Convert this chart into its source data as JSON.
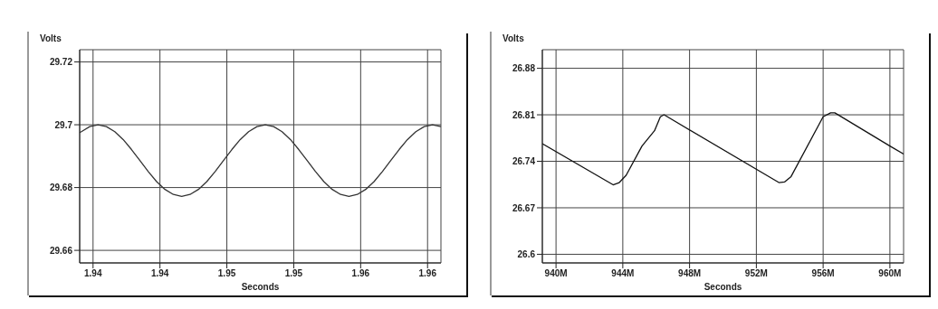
{
  "chart_data": [
    {
      "type": "line",
      "xlabel": "Seconds",
      "ylabel": "Volts",
      "grid": true,
      "legend": false,
      "marker": "none",
      "line_style": "solid",
      "xlim": [
        1.9402,
        1.9618
      ],
      "ylim": [
        29.656,
        29.7239
      ],
      "xticks": [
        {
          "value": 1.941,
          "label": "1.94"
        },
        {
          "value": 1.945,
          "label": "1.94"
        },
        {
          "value": 1.949,
          "label": "1.95"
        },
        {
          "value": 1.953,
          "label": "1.95"
        },
        {
          "value": 1.957,
          "label": "1.96"
        },
        {
          "value": 1.961,
          "label": "1.96"
        }
      ],
      "yticks": [
        29.66,
        29.68,
        29.7,
        29.72
      ],
      "series": [
        {
          "color": "#333333",
          "x": [
            1.9402,
            1.9403,
            1.9408,
            1.9413,
            1.9418,
            1.9423,
            1.9428,
            1.9433,
            1.9438,
            1.9443,
            1.9448,
            1.9453,
            1.9458,
            1.9463,
            1.9468,
            1.9473,
            1.9478,
            1.9483,
            1.9488,
            1.9493,
            1.9498,
            1.9503,
            1.9508,
            1.9513,
            1.9518,
            1.9523,
            1.9528,
            1.9533,
            1.9538,
            1.9543,
            1.9548,
            1.9553,
            1.9558,
            1.9563,
            1.9568,
            1.9573,
            1.9578,
            1.9583,
            1.9588,
            1.9593,
            1.9598,
            1.9603,
            1.9608,
            1.9613,
            1.9618
          ],
          "values": [
            29.6975,
            29.6978,
            29.6994,
            29.7,
            29.6994,
            29.6978,
            29.6953,
            29.6921,
            29.6886,
            29.6851,
            29.6819,
            29.6794,
            29.6778,
            29.6772,
            29.6778,
            29.6794,
            29.6819,
            29.6851,
            29.6886,
            29.6921,
            29.6953,
            29.6978,
            29.6994,
            29.7,
            29.6994,
            29.6978,
            29.6953,
            29.6921,
            29.6886,
            29.6851,
            29.6819,
            29.6794,
            29.6778,
            29.6772,
            29.6778,
            29.6794,
            29.6819,
            29.6851,
            29.6886,
            29.6921,
            29.6953,
            29.6978,
            29.6994,
            29.7,
            29.6994
          ]
        }
      ]
    },
    {
      "type": "line",
      "xlabel": "Seconds",
      "ylabel": "Volts",
      "grid": true,
      "legend": false,
      "marker": "none",
      "line_style": "solid",
      "xlim": [
        939.18,
        960.82
      ],
      "ylim": [
        26.587,
        26.908
      ],
      "xticks": [
        {
          "value": 940,
          "label": "940M"
        },
        {
          "value": 944,
          "label": "944M"
        },
        {
          "value": 948,
          "label": "948M"
        },
        {
          "value": 952,
          "label": "952M"
        },
        {
          "value": 956,
          "label": "956M"
        },
        {
          "value": 960,
          "label": "960M"
        }
      ],
      "yticks": [
        26.6,
        26.67,
        26.74,
        26.81,
        26.88
      ],
      "series": [
        {
          "color": "#111111",
          "x": [
            939.18,
            943.42,
            943.79,
            944.2,
            945.15,
            945.9,
            946.25,
            946.47,
            953.35,
            953.7,
            954.08,
            956.0,
            956.45,
            956.7,
            960.0,
            960.82
          ],
          "values": [
            26.7665,
            26.7046,
            26.708,
            26.719,
            26.763,
            26.786,
            26.807,
            26.81,
            26.708,
            26.709,
            26.717,
            26.807,
            26.813,
            26.813,
            26.763,
            26.751
          ]
        }
      ]
    }
  ]
}
